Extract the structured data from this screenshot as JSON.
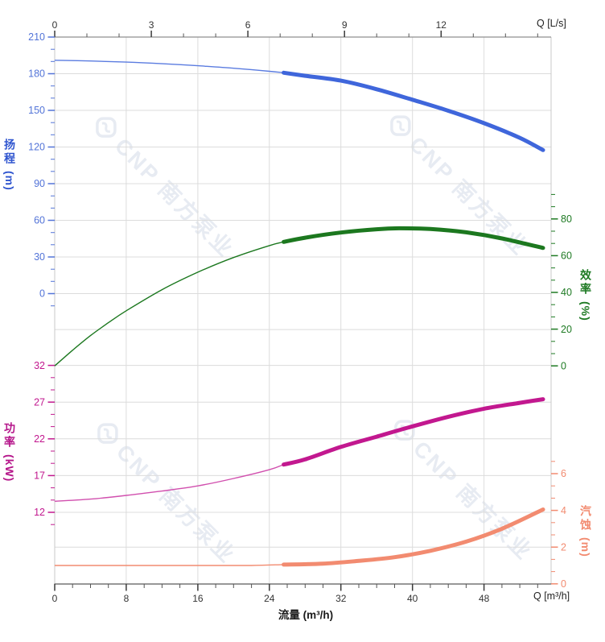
{
  "chart_data": {
    "type": "line",
    "title": "",
    "axes": {
      "top": {
        "label": "Q [L/s]",
        "major_ticks": [
          0,
          3,
          6,
          9,
          12
        ],
        "max_Ls": 15.42,
        "tick_color": "#3a3a3a",
        "label_color": "#333333"
      },
      "bottom": {
        "title": "流量 (m³/h)",
        "corner_label": "Q [m³/h]",
        "major_ticks": [
          0,
          8,
          16,
          24,
          32,
          40,
          48
        ],
        "max": 55.5,
        "tick_color": "#3a3a3a",
        "label_color": "#333333"
      },
      "head": {
        "title": "扬程",
        "unit": "(m)",
        "major_ticks": [
          210,
          180,
          150,
          120,
          90,
          60,
          30,
          0
        ],
        "color": "#5374d8",
        "title_color": "#2f55cf"
      },
      "efficiency": {
        "title": "效率",
        "unit": "(%)",
        "major_ticks": [
          80,
          60,
          40,
          20,
          0
        ],
        "color": "#1e7a23",
        "title_color": "#1e7a23"
      },
      "power": {
        "title": "功率",
        "unit": "(kW)",
        "major_ticks": [
          32,
          27,
          22,
          17,
          12
        ],
        "color": "#c2188f",
        "title_color": "#b5158a"
      },
      "npsh": {
        "title": "汽蚀",
        "unit": "(m)",
        "major_ticks": [
          6,
          4,
          2,
          0
        ],
        "color": "#f28b70",
        "title_color": "#f28b70"
      }
    },
    "grid": true,
    "duty_range_m3h": [
      25.6,
      54.6
    ],
    "series": [
      {
        "name": "head",
        "axis": "head",
        "color": "#3f66db",
        "thin_color": "#5b7ce0",
        "points": [
          [
            0,
            191
          ],
          [
            4,
            190.4
          ],
          [
            8,
            189.5
          ],
          [
            12,
            188.2
          ],
          [
            16,
            186.5
          ],
          [
            20,
            184.5
          ],
          [
            24,
            182
          ],
          [
            25.6,
            180.8
          ],
          [
            28,
            178.3
          ],
          [
            32,
            174.3
          ],
          [
            36,
            167.3
          ],
          [
            40,
            158.7
          ],
          [
            44,
            149.7
          ],
          [
            48,
            139.5
          ],
          [
            52,
            127.5
          ],
          [
            54.6,
            117.5
          ]
        ]
      },
      {
        "name": "efficiency",
        "axis": "efficiency",
        "color": "#1c781f",
        "thin_color": "#1c781f",
        "points": [
          [
            0,
            0
          ],
          [
            2,
            8.5
          ],
          [
            4,
            16.5
          ],
          [
            6,
            23.5
          ],
          [
            8,
            30
          ],
          [
            12,
            41.5
          ],
          [
            16,
            51
          ],
          [
            20,
            59
          ],
          [
            24,
            65.5
          ],
          [
            25.6,
            67.5
          ],
          [
            28,
            69.8
          ],
          [
            32,
            72.6
          ],
          [
            36,
            74.4
          ],
          [
            38.5,
            74.9
          ],
          [
            42,
            74.5
          ],
          [
            46,
            72.7
          ],
          [
            50,
            69.4
          ],
          [
            54.6,
            64.2
          ]
        ]
      },
      {
        "name": "power",
        "axis": "power",
        "color": "#c2188f",
        "thin_color": "#d14fae",
        "points": [
          [
            0,
            13.5
          ],
          [
            4,
            13.8
          ],
          [
            8,
            14.3
          ],
          [
            12,
            14.9
          ],
          [
            16,
            15.6
          ],
          [
            20,
            16.6
          ],
          [
            24,
            17.8
          ],
          [
            25.6,
            18.5
          ],
          [
            28,
            19.2
          ],
          [
            32,
            20.9
          ],
          [
            36,
            22.3
          ],
          [
            40,
            23.7
          ],
          [
            44,
            25
          ],
          [
            48,
            26.1
          ],
          [
            52,
            26.9
          ],
          [
            54.6,
            27.4
          ]
        ]
      },
      {
        "name": "npsh",
        "axis": "npsh",
        "color": "#f28b70",
        "thin_color": "#f28b70",
        "points": [
          [
            0,
            1
          ],
          [
            8,
            1
          ],
          [
            16,
            1
          ],
          [
            22,
            1
          ],
          [
            25.6,
            1.05
          ],
          [
            30,
            1.1
          ],
          [
            34,
            1.25
          ],
          [
            38,
            1.45
          ],
          [
            42,
            1.8
          ],
          [
            46,
            2.3
          ],
          [
            50,
            3
          ],
          [
            54.6,
            4.05
          ]
        ]
      }
    ]
  },
  "watermark": {
    "logo_icon": "cnp-logo",
    "text": "CNP 南方泵业",
    "color": "#e7ebf2"
  }
}
